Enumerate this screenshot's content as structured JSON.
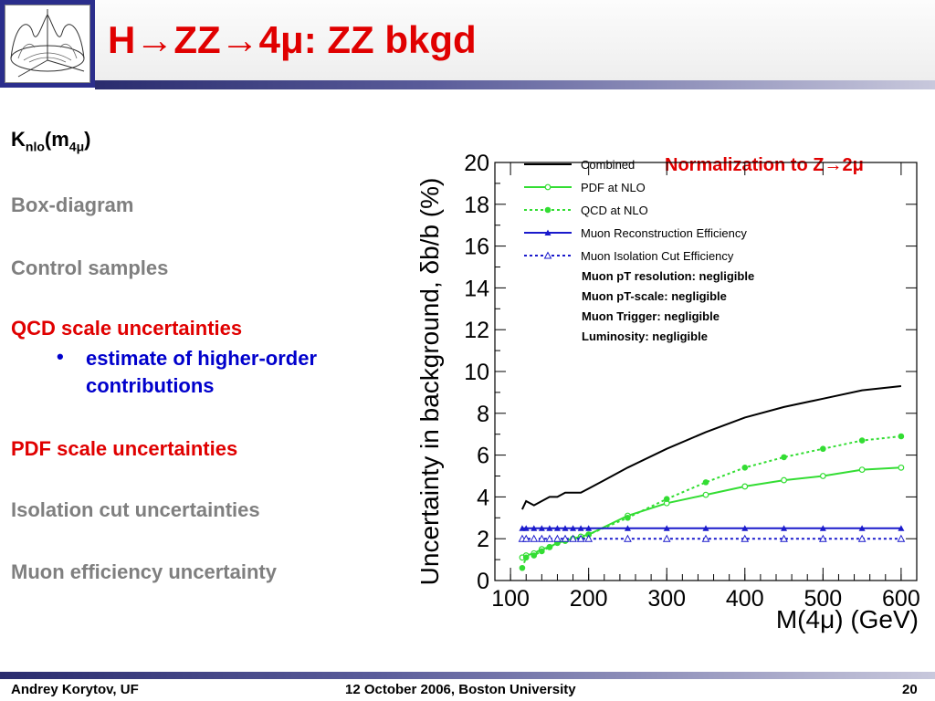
{
  "slide": {
    "title": "H→ZZ→4μ: ZZ bkgd",
    "logo_icon": "potential-surface-logo",
    "left_items": [
      {
        "text": "K",
        "sub": "nlo",
        "rest": "(m",
        "sub2": "4μ",
        "end": ")"
      },
      {
        "text": "Box-diagram"
      },
      {
        "text": "Control samples"
      },
      {
        "text": "QCD scale uncertainties"
      },
      {
        "text": "estimate of higher-order contributions"
      },
      {
        "text": "PDF scale uncertainties"
      },
      {
        "text": "Isolation cut uncertainties"
      },
      {
        "text": "Muon efficiency uncertainty"
      }
    ],
    "normalization_note": "Normalization to Z→2μ",
    "colors": {
      "title_red": "#e00000",
      "gray_text": "#7f7f7f",
      "sub_blue": "#0000cc",
      "accent_navy": "#2b2e8c"
    }
  },
  "footer": {
    "author": "Andrey Korytov, UF",
    "event": "12 October 2006, Boston University",
    "page": "20"
  },
  "chart_data": {
    "type": "line",
    "xlabel": "M(4μ) (GeV)",
    "ylabel": "Uncertainty in background, δb/b (%)",
    "xlim": [
      80,
      620
    ],
    "ylim": [
      0,
      20
    ],
    "xticks": [
      100,
      200,
      300,
      400,
      500,
      600
    ],
    "yticks": [
      0,
      2,
      4,
      6,
      8,
      10,
      12,
      14,
      16,
      18,
      20
    ],
    "legend_position": "top-left",
    "series": [
      {
        "name": "Combined",
        "color": "#000000",
        "style": "solid",
        "marker": "none",
        "x": [
          115,
          120,
          130,
          140,
          150,
          160,
          170,
          180,
          190,
          200,
          220,
          250,
          300,
          350,
          400,
          450,
          500,
          550,
          600
        ],
        "y": [
          3.4,
          3.8,
          3.6,
          3.8,
          4.0,
          4.0,
          4.2,
          4.2,
          4.2,
          4.4,
          4.8,
          5.4,
          6.3,
          7.1,
          7.8,
          8.3,
          8.7,
          9.1,
          9.3
        ]
      },
      {
        "name": "PDF at NLO",
        "color": "#33dd33",
        "style": "solid",
        "marker": "circle",
        "x": [
          115,
          120,
          130,
          140,
          150,
          160,
          170,
          180,
          190,
          200,
          250,
          300,
          350,
          400,
          450,
          500,
          550,
          600
        ],
        "y": [
          1.1,
          1.2,
          1.3,
          1.5,
          1.6,
          1.8,
          1.9,
          2.0,
          2.1,
          2.2,
          3.1,
          3.7,
          4.1,
          4.5,
          4.8,
          5.0,
          5.3,
          5.4
        ]
      },
      {
        "name": "QCD at NLO",
        "color": "#33dd33",
        "style": "dotted",
        "marker": "dot",
        "x": [
          115,
          120,
          130,
          140,
          150,
          160,
          170,
          180,
          190,
          200,
          250,
          300,
          350,
          400,
          450,
          500,
          550,
          600
        ],
        "y": [
          0.6,
          1.1,
          1.2,
          1.4,
          1.6,
          1.8,
          1.9,
          2.0,
          2.0,
          2.2,
          3.0,
          3.9,
          4.7,
          5.4,
          5.9,
          6.3,
          6.7,
          6.9
        ]
      },
      {
        "name": "Muon Reconstruction Efficiency",
        "color": "#1a1acc",
        "style": "solid",
        "marker": "triangle-filled",
        "x": [
          115,
          120,
          130,
          140,
          150,
          160,
          170,
          180,
          190,
          200,
          250,
          300,
          350,
          400,
          450,
          500,
          550,
          600
        ],
        "y": [
          2.5,
          2.5,
          2.5,
          2.5,
          2.5,
          2.5,
          2.5,
          2.5,
          2.5,
          2.5,
          2.5,
          2.5,
          2.5,
          2.5,
          2.5,
          2.5,
          2.5,
          2.5
        ]
      },
      {
        "name": "Muon Isolation Cut Efficiency",
        "color": "#1a1acc",
        "style": "dotted",
        "marker": "triangle-open",
        "x": [
          115,
          120,
          130,
          140,
          150,
          160,
          170,
          180,
          190,
          200,
          250,
          300,
          350,
          400,
          450,
          500,
          550,
          600
        ],
        "y": [
          2.0,
          2.0,
          2.0,
          2.0,
          2.0,
          2.0,
          2.0,
          2.0,
          2.0,
          2.0,
          2.0,
          2.0,
          2.0,
          2.0,
          2.0,
          2.0,
          2.0,
          2.0
        ]
      }
    ],
    "annotations": [
      "Muon pT resolution: negligible",
      "Muon pT-scale: negligible",
      "Muon Trigger: negligible",
      "Luminosity: negligible"
    ]
  }
}
